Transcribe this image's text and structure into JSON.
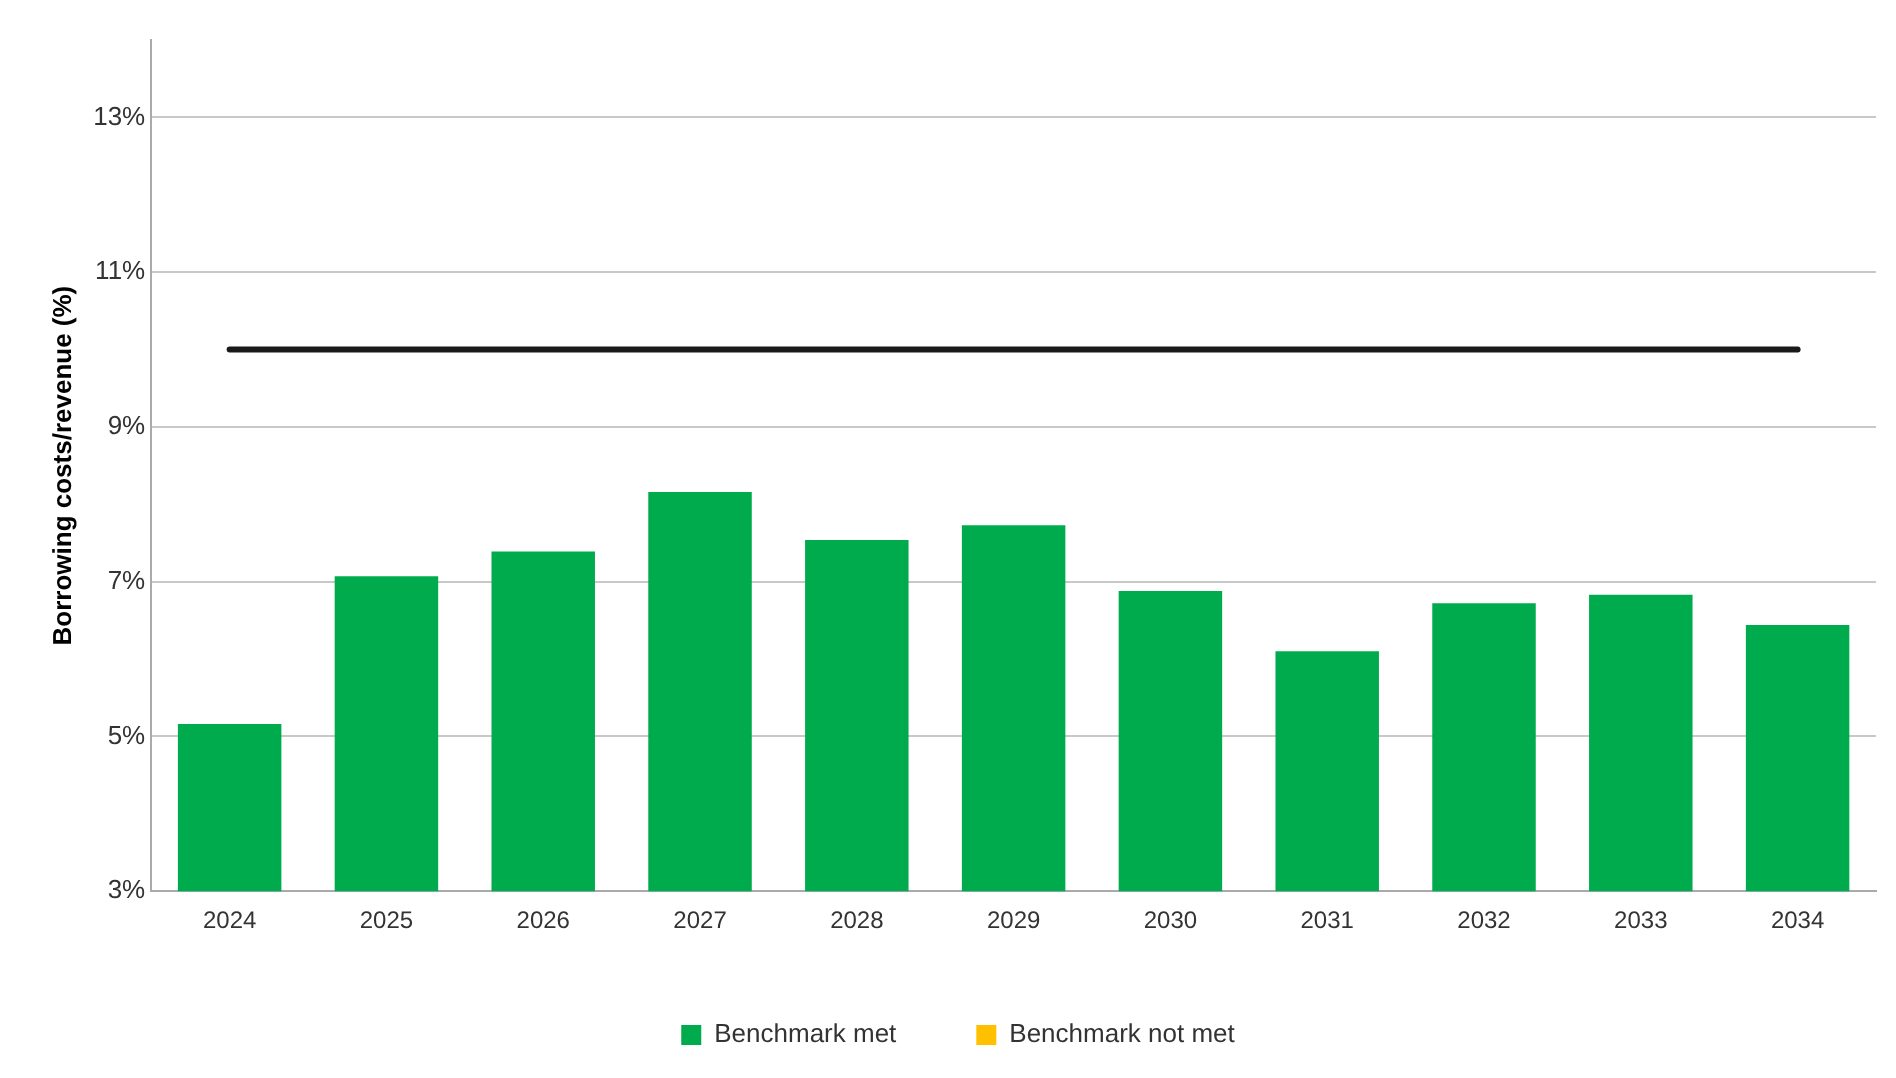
{
  "chart_data": {
    "type": "bar",
    "ylabel": "Borrowing costs/revenue (%)",
    "categories": [
      "2024",
      "2025",
      "2026",
      "2027",
      "2028",
      "2029",
      "2030",
      "2031",
      "2032",
      "2033",
      "2034"
    ],
    "series": [
      {
        "name": "Benchmark met",
        "color": "#00ab4e",
        "values": [
          5.16,
          7.07,
          7.39,
          8.16,
          7.54,
          7.73,
          6.88,
          6.1,
          6.72,
          6.83,
          6.44
        ]
      },
      {
        "name": "Benchmark not met",
        "color": "#ffc000",
        "values": [
          null,
          null,
          null,
          null,
          null,
          null,
          null,
          null,
          null,
          null,
          null
        ]
      }
    ],
    "ylim": [
      3,
      14
    ],
    "yticks": [
      {
        "value": 3,
        "label": "3%"
      },
      {
        "value": 5,
        "label": "5%"
      },
      {
        "value": 7,
        "label": "7%"
      },
      {
        "value": 9,
        "label": "9%"
      },
      {
        "value": 11,
        "label": "11%"
      },
      {
        "value": 13,
        "label": "13%"
      }
    ],
    "ref_lines": [
      {
        "axis": "y",
        "value": 10,
        "color": "#1a1a1a"
      }
    ],
    "grid": "y",
    "legend": "bottom"
  }
}
